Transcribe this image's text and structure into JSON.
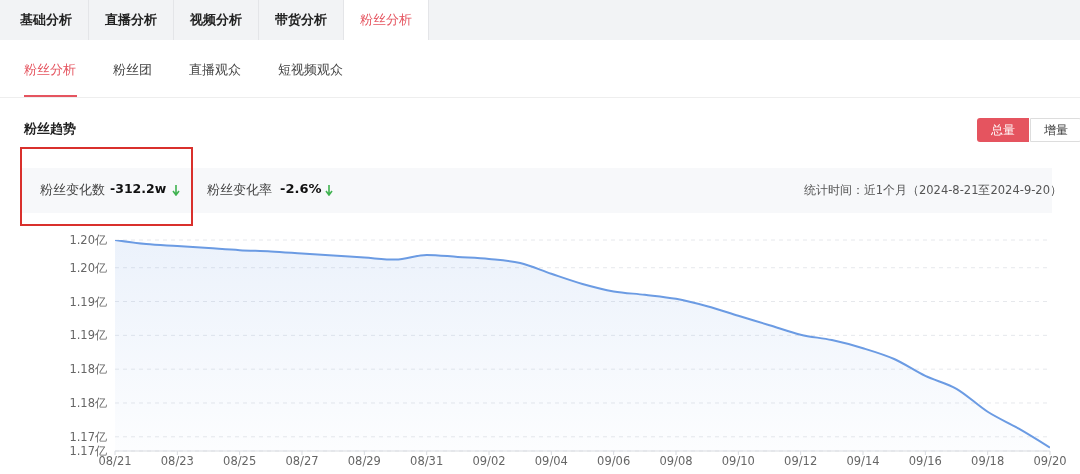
{
  "chart_data": {
    "type": "area",
    "title": "粉丝趋势",
    "annotations": [
      "基础分析",
      "直播分析",
      "视频分析",
      "带货分析",
      "粉丝分析",
      "粉丝分析",
      "粉丝团",
      "直播观众",
      "短视频观众",
      "总量",
      "增量",
      "粉丝变化数",
      "-312.2w",
      "粉丝变化率",
      "-2.6%",
      "统计时间：近1个月（2024-8-21至2024-9-20）"
    ],
    "categories": [
      "08/21",
      null,
      "08/23",
      null,
      "08/25",
      null,
      "08/27",
      null,
      "08/29",
      null,
      "08/31",
      null,
      "09/02",
      null,
      "09/04",
      null,
      "09/06",
      null,
      "09/08",
      null,
      "09/10",
      null,
      "09/12",
      null,
      "09/14",
      null,
      "09/16",
      null,
      "09/18",
      null,
      "09/20"
    ],
    "series": [
      {
        "color": "#6b9be3",
        "values": [
          1.2016,
          1.201,
          1.2007,
          1.2004,
          1.2001,
          1.1999,
          1.1996,
          1.1993,
          1.199,
          1.1987,
          1.1994,
          1.1991,
          1.1988,
          1.1982,
          1.1966,
          1.1951,
          1.194,
          1.1935,
          1.1929,
          1.1918,
          1.1904,
          1.189,
          1.1876,
          1.1868,
          1.1856,
          1.184,
          1.1815,
          1.1796,
          1.1762,
          1.1737,
          1.1709
        ]
      }
    ],
    "ylim": [
      1.1704,
      1.2016
    ],
    "yticks": [
      {
        "value": 1.1704,
        "label": "1.17亿"
      },
      {
        "value": 1.1725,
        "label": "1.17亿"
      },
      {
        "value": 1.1775,
        "label": "1.18亿"
      },
      {
        "value": 1.1825,
        "label": "1.18亿"
      },
      {
        "value": 1.1875,
        "label": "1.19亿"
      },
      {
        "value": 1.1925,
        "label": "1.19亿"
      },
      {
        "value": 1.1975,
        "label": "1.20亿"
      },
      {
        "value": 1.2016,
        "label": "1.20亿"
      }
    ],
    "grid": "y",
    "marker": "none",
    "line_style": "solid"
  }
}
